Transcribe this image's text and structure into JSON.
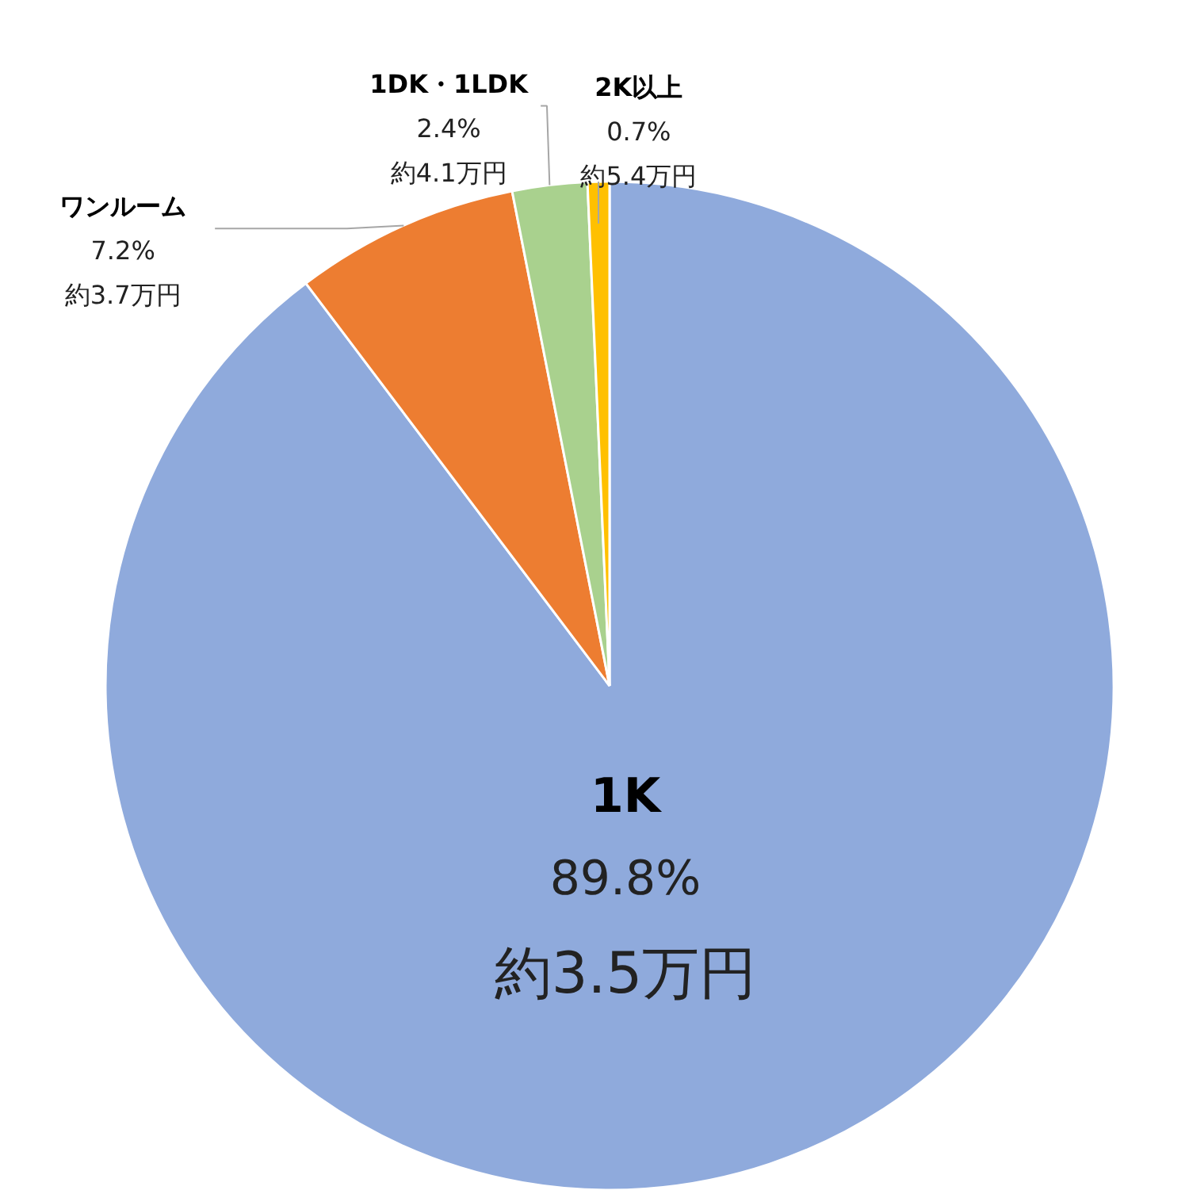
{
  "chart_data": {
    "type": "pie",
    "categories": [
      "1K",
      "ワンルーム",
      "1DK・1LDK",
      "2K以上"
    ],
    "values": [
      89.8,
      7.2,
      2.4,
      0.7
    ],
    "colors": [
      "#8faadc",
      "#ed7d31",
      "#a9d18e",
      "#ffc000"
    ],
    "value_labels": [
      "89.8%\n約3.5万円",
      "7.2%\n約3.7万円",
      "2.4%\n約4.1万円",
      "0.7%\n約5.4万円"
    ]
  }
}
